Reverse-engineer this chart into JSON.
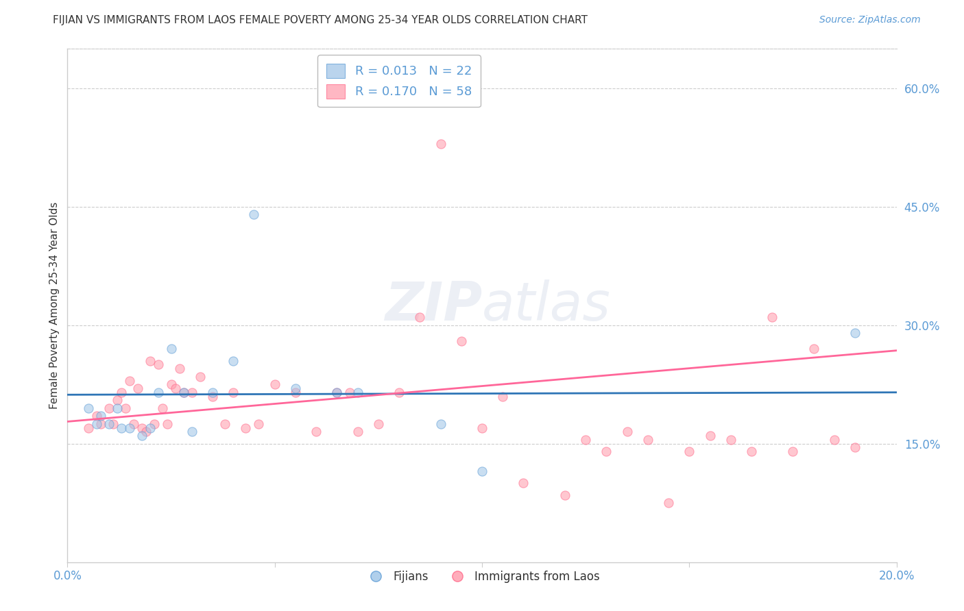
{
  "title": "FIJIAN VS IMMIGRANTS FROM LAOS FEMALE POVERTY AMONG 25-34 YEAR OLDS CORRELATION CHART",
  "source": "Source: ZipAtlas.com",
  "ylabel": "Female Poverty Among 25-34 Year Olds",
  "xlim": [
    0.0,
    0.2
  ],
  "ylim": [
    0.0,
    0.65
  ],
  "xticks": [
    0.0,
    0.05,
    0.1,
    0.15,
    0.2
  ],
  "xticklabels": [
    "0.0%",
    "",
    "",
    "",
    "20.0%"
  ],
  "yticks_right": [
    0.15,
    0.3,
    0.45,
    0.6
  ],
  "ytick_right_labels": [
    "15.0%",
    "30.0%",
    "45.0%",
    "60.0%"
  ],
  "background_color": "#ffffff",
  "grid_color": "#cccccc",
  "axis_color": "#cccccc",
  "title_color": "#333333",
  "right_label_color": "#5B9BD5",
  "legend_R1": "R = 0.013",
  "legend_N1": "N = 22",
  "legend_R2": "R = 0.170",
  "legend_N2": "N = 58",
  "fijian_color": "#9DC3E6",
  "laos_color": "#FF99AA",
  "fijian_edge": "#5B9BD5",
  "laos_edge": "#FF6688",
  "fijian_line_color": "#2E75B6",
  "laos_line_color": "#FF6699",
  "fijian_scatter_x": [
    0.005,
    0.007,
    0.008,
    0.01,
    0.012,
    0.013,
    0.015,
    0.018,
    0.02,
    0.022,
    0.025,
    0.028,
    0.03,
    0.035,
    0.04,
    0.045,
    0.055,
    0.065,
    0.07,
    0.09,
    0.1,
    0.19
  ],
  "fijian_scatter_y": [
    0.195,
    0.175,
    0.185,
    0.175,
    0.195,
    0.17,
    0.17,
    0.16,
    0.17,
    0.215,
    0.27,
    0.215,
    0.165,
    0.215,
    0.255,
    0.44,
    0.22,
    0.215,
    0.215,
    0.175,
    0.115,
    0.29
  ],
  "laos_scatter_x": [
    0.005,
    0.007,
    0.008,
    0.01,
    0.011,
    0.012,
    0.013,
    0.014,
    0.015,
    0.016,
    0.017,
    0.018,
    0.019,
    0.02,
    0.021,
    0.022,
    0.023,
    0.024,
    0.025,
    0.026,
    0.027,
    0.028,
    0.03,
    0.032,
    0.035,
    0.038,
    0.04,
    0.043,
    0.046,
    0.05,
    0.055,
    0.06,
    0.065,
    0.068,
    0.07,
    0.075,
    0.08,
    0.085,
    0.09,
    0.095,
    0.1,
    0.105,
    0.11,
    0.12,
    0.125,
    0.13,
    0.135,
    0.14,
    0.145,
    0.15,
    0.155,
    0.16,
    0.165,
    0.17,
    0.175,
    0.18,
    0.185,
    0.19
  ],
  "laos_scatter_y": [
    0.17,
    0.185,
    0.175,
    0.195,
    0.175,
    0.205,
    0.215,
    0.195,
    0.23,
    0.175,
    0.22,
    0.17,
    0.165,
    0.255,
    0.175,
    0.25,
    0.195,
    0.175,
    0.225,
    0.22,
    0.245,
    0.215,
    0.215,
    0.235,
    0.21,
    0.175,
    0.215,
    0.17,
    0.175,
    0.225,
    0.215,
    0.165,
    0.215,
    0.215,
    0.165,
    0.175,
    0.215,
    0.31,
    0.53,
    0.28,
    0.17,
    0.21,
    0.1,
    0.085,
    0.155,
    0.14,
    0.165,
    0.155,
    0.075,
    0.14,
    0.16,
    0.155,
    0.14,
    0.31,
    0.14,
    0.27,
    0.155,
    0.145
  ],
  "fijian_line_x": [
    0.0,
    0.2
  ],
  "fijian_line_y": [
    0.212,
    0.215
  ],
  "laos_line_x": [
    0.0,
    0.2
  ],
  "laos_line_y": [
    0.178,
    0.268
  ],
  "marker_size": 90,
  "marker_alpha": 0.55
}
